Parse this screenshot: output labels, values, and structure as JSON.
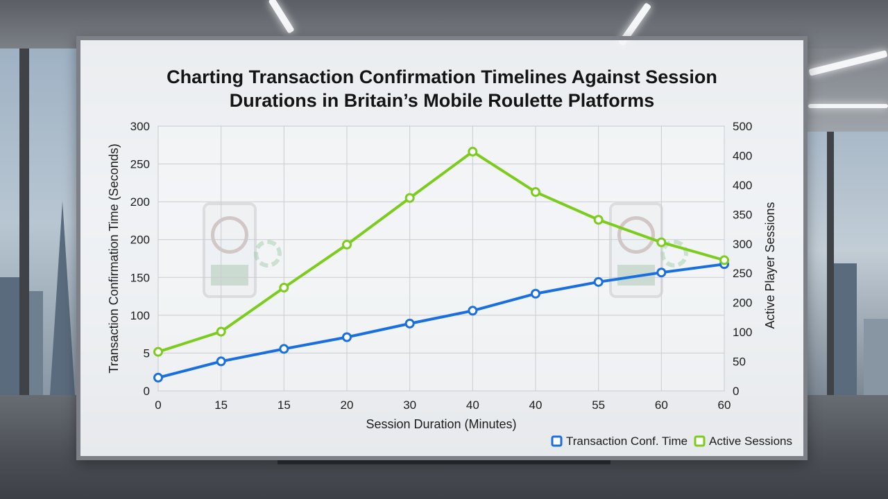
{
  "chart_data": {
    "type": "line",
    "title_lines": [
      "Charting Transaction Confirmation Timelines Against Session",
      "Durations in Britain’s Mobile Roulette Platforms"
    ],
    "xlabel": "Session Duration (Minutes)",
    "ylabel_left": "Transaction Confirmation Time (Seconds)",
    "ylabel_right": "Active Player Sessions",
    "categories": [
      "0",
      "15",
      "15",
      "20",
      "30",
      "40",
      "40",
      "55",
      "60",
      "60"
    ],
    "y_left_ticks": [
      "0",
      "5",
      "100",
      "150",
      "200",
      "200",
      "250",
      "300"
    ],
    "y_right_ticks": [
      "0",
      "50",
      "100",
      "200",
      "250",
      "300",
      "350",
      "400",
      "400",
      "500"
    ],
    "y_left_range": [
      0,
      7
    ],
    "y_right_range": [
      0,
      8
    ],
    "grid": true,
    "legend_position": "bottom-right",
    "series": [
      {
        "name": "Transaction Conf. Time",
        "axis": "left",
        "color": "#1a6fe0",
        "values": [
          0.35,
          0.78,
          1.11,
          1.42,
          1.78,
          2.12,
          2.57,
          2.88,
          3.13,
          3.35
        ]
      },
      {
        "name": "Active Sessions",
        "axis": "right",
        "color": "#7ccc1e",
        "values": [
          1.18,
          1.79,
          3.12,
          4.42,
          5.83,
          7.23,
          6.01,
          5.17,
          4.49,
          3.95
        ]
      }
    ]
  }
}
